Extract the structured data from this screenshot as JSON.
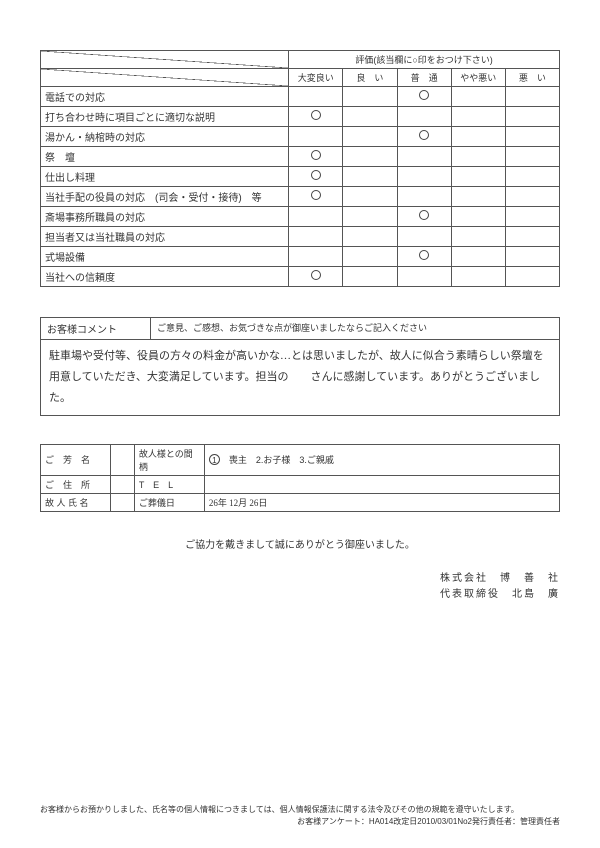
{
  "evaluation": {
    "header_title": "評価(該当欄に○印をおつけ下さい)",
    "columns": [
      "大変良い",
      "良　い",
      "普　通",
      "やや悪い",
      "悪　い"
    ],
    "rows": [
      {
        "label": "電話での対応",
        "marks": [
          false,
          false,
          true,
          false,
          false
        ]
      },
      {
        "label": "打ち合わせ時に項目ごとに適切な説明",
        "marks": [
          true,
          false,
          false,
          false,
          false
        ]
      },
      {
        "label": "湯かん・納棺時の対応",
        "marks": [
          false,
          false,
          true,
          false,
          false
        ]
      },
      {
        "label": "祭　壇",
        "marks": [
          true,
          false,
          false,
          false,
          false
        ]
      },
      {
        "label": "仕出し料理",
        "marks": [
          true,
          false,
          false,
          false,
          false
        ]
      },
      {
        "label": "当社手配の役員の対応　(司会・受付・接待)　等",
        "marks": [
          true,
          false,
          false,
          false,
          false
        ]
      },
      {
        "label": "斎場事務所職員の対応",
        "marks": [
          false,
          false,
          true,
          false,
          false
        ]
      },
      {
        "label": "担当者又は当社職員の対応",
        "marks": [
          false,
          false,
          false,
          false,
          false
        ]
      },
      {
        "label": "式場設備",
        "marks": [
          false,
          false,
          true,
          false,
          false
        ]
      },
      {
        "label": "当社への信頼度",
        "marks": [
          true,
          false,
          false,
          false,
          false
        ]
      }
    ]
  },
  "comment": {
    "label": "お客様コメント",
    "hint": "ご意見、ご感想、お気づきな点が御座いましたならご記入ください",
    "text": "駐車場や受付等、役員の方々の料金が高いかな…とは思いましたが、故人に似合う素晴らしい祭壇を用意していただき、大変満足しています。担当の　　さんに感謝しています。ありがとうございました。"
  },
  "info": {
    "name_label": "ご　芳　名",
    "name_value": "",
    "relation_label": "故人様との間柄",
    "relation_options": "　喪主　2.お子様　3.ご親戚",
    "addr_label": "ご　住　所",
    "addr_value": "",
    "tel_label": "T　E　L",
    "tel_value": "",
    "deceased_label": "故 人 氏 名",
    "deceased_value": "",
    "funeral_date_label": "ご葬儀日",
    "funeral_date_value": "26年 12月 26日"
  },
  "thanks": "ご協力を戴きまして誠にありがとう御座いました。",
  "company": {
    "line1": "株式会社　博　善　社",
    "line2": "代表取締役　北島　廣"
  },
  "footer": {
    "line1": "お客様からお預かりしました、氏名等の個人情報につきましては、個人情報保護法に関する法令及びその他の規範を遵守いたします。",
    "line2": "お客様アンケート：HA014改定日2010/03/01No2発行責任者：管理責任者"
  }
}
